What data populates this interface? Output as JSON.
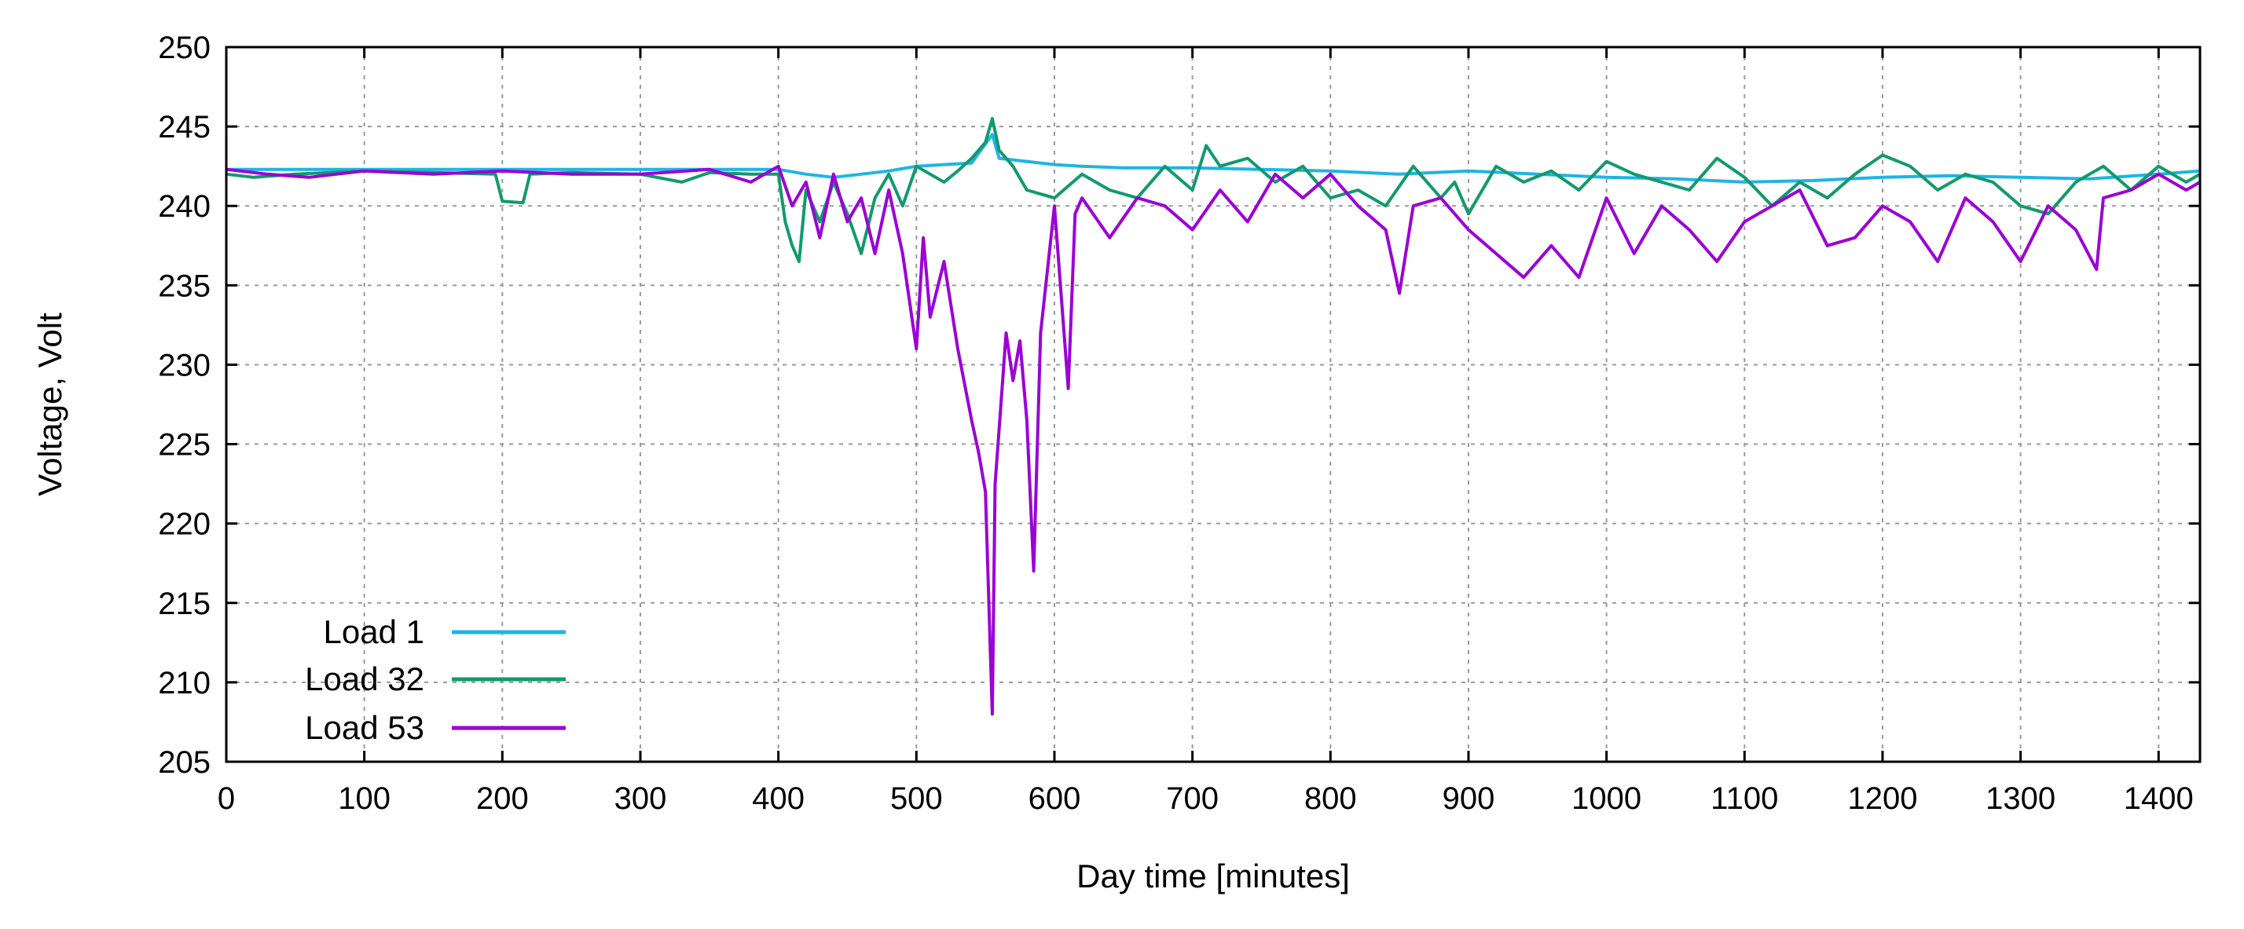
{
  "chart_data": {
    "type": "line",
    "title": "",
    "xlabel": "Day time [minutes]",
    "ylabel": "Voltage, Volt",
    "xlim": [
      0,
      1430
    ],
    "ylim": [
      205,
      250
    ],
    "xticks": [
      0,
      100,
      200,
      300,
      400,
      500,
      600,
      700,
      800,
      900,
      1000,
      1100,
      1200,
      1300,
      1400
    ],
    "yticks": [
      205,
      210,
      215,
      220,
      225,
      230,
      235,
      240,
      245,
      250
    ],
    "grid": true,
    "legend_position": "bottom-left",
    "series": [
      {
        "name": "Load 1",
        "color": "#1fb4e6",
        "x": [
          0,
          50,
          100,
          150,
          200,
          250,
          300,
          350,
          400,
          420,
          440,
          460,
          480,
          500,
          520,
          540,
          555,
          560,
          580,
          600,
          620,
          650,
          700,
          750,
          800,
          850,
          900,
          950,
          1000,
          1050,
          1100,
          1150,
          1200,
          1250,
          1300,
          1350,
          1400,
          1430
        ],
        "y": [
          242.3,
          242.3,
          242.3,
          242.3,
          242.3,
          242.3,
          242.3,
          242.3,
          242.3,
          242.0,
          241.8,
          242.0,
          242.2,
          242.5,
          242.6,
          242.7,
          244.5,
          243.0,
          242.8,
          242.6,
          242.5,
          242.4,
          242.4,
          242.3,
          242.2,
          242.0,
          242.2,
          242.0,
          241.8,
          241.7,
          241.5,
          241.6,
          241.8,
          241.9,
          241.8,
          241.7,
          242.0,
          242.2
        ]
      },
      {
        "name": "Load 32",
        "color": "#119a6e",
        "x": [
          0,
          20,
          50,
          100,
          150,
          195,
          200,
          215,
          220,
          250,
          300,
          330,
          350,
          380,
          400,
          405,
          410,
          415,
          420,
          430,
          440,
          450,
          460,
          470,
          480,
          490,
          500,
          510,
          520,
          530,
          540,
          550,
          555,
          560,
          570,
          580,
          600,
          620,
          640,
          660,
          680,
          700,
          710,
          720,
          740,
          760,
          780,
          800,
          820,
          840,
          860,
          880,
          890,
          900,
          920,
          940,
          960,
          980,
          1000,
          1020,
          1040,
          1060,
          1080,
          1100,
          1120,
          1140,
          1160,
          1180,
          1200,
          1220,
          1240,
          1260,
          1280,
          1300,
          1320,
          1340,
          1360,
          1380,
          1400,
          1420,
          1430
        ],
        "y": [
          242.0,
          241.8,
          242.0,
          242.2,
          242.1,
          242.0,
          240.3,
          240.2,
          242.0,
          242.1,
          242.0,
          241.5,
          242.1,
          242.0,
          242.0,
          239.0,
          237.5,
          236.5,
          241.0,
          239.0,
          241.5,
          239.5,
          237.0,
          240.5,
          242.0,
          240.0,
          242.5,
          242.0,
          241.5,
          242.2,
          243.0,
          244.0,
          245.5,
          243.5,
          242.5,
          241.0,
          240.5,
          242.0,
          241.0,
          240.5,
          242.5,
          241.0,
          243.8,
          242.5,
          243.0,
          241.5,
          242.5,
          240.5,
          241.0,
          240.0,
          242.5,
          240.5,
          241.5,
          239.5,
          242.5,
          241.5,
          242.2,
          241.0,
          242.8,
          242.0,
          241.5,
          241.0,
          243.0,
          241.8,
          240.0,
          241.5,
          240.5,
          242.0,
          243.2,
          242.5,
          241.0,
          242.0,
          241.5,
          240.0,
          239.5,
          241.5,
          242.5,
          241.0,
          242.5,
          241.5,
          242.0
        ]
      },
      {
        "name": "Load 53",
        "color": "#9b00d6",
        "x": [
          0,
          30,
          60,
          100,
          150,
          200,
          250,
          300,
          350,
          380,
          400,
          410,
          420,
          430,
          440,
          450,
          460,
          470,
          480,
          490,
          500,
          505,
          510,
          520,
          530,
          540,
          545,
          550,
          555,
          557,
          560,
          565,
          570,
          575,
          580,
          585,
          590,
          600,
          610,
          615,
          620,
          640,
          660,
          680,
          700,
          720,
          740,
          760,
          780,
          800,
          820,
          840,
          850,
          860,
          880,
          900,
          920,
          940,
          960,
          980,
          1000,
          1020,
          1040,
          1060,
          1080,
          1100,
          1120,
          1140,
          1160,
          1180,
          1200,
          1220,
          1240,
          1260,
          1280,
          1300,
          1320,
          1340,
          1355,
          1360,
          1380,
          1400,
          1420,
          1430
        ],
        "y": [
          242.3,
          242.0,
          241.8,
          242.2,
          242.0,
          242.2,
          242.0,
          242.0,
          242.3,
          241.5,
          242.5,
          240.0,
          241.5,
          238.0,
          242.0,
          239.0,
          240.5,
          237.0,
          241.0,
          237.0,
          231.0,
          238.0,
          233.0,
          236.5,
          231.0,
          226.5,
          224.5,
          222.0,
          208.0,
          222.5,
          226.0,
          232.0,
          229.0,
          231.5,
          226.5,
          217.0,
          232.0,
          240.0,
          228.5,
          239.5,
          240.5,
          238.0,
          240.5,
          240.0,
          238.5,
          241.0,
          239.0,
          242.0,
          240.5,
          242.0,
          240.0,
          238.5,
          234.5,
          240.0,
          240.5,
          238.5,
          237.0,
          235.5,
          237.5,
          235.5,
          240.5,
          237.0,
          240.0,
          238.5,
          236.5,
          239.0,
          240.0,
          241.0,
          237.5,
          238.0,
          240.0,
          239.0,
          236.5,
          240.5,
          239.0,
          236.5,
          240.0,
          238.5,
          236.0,
          240.5,
          241.0,
          242.0,
          241.0,
          241.5
        ]
      }
    ]
  }
}
